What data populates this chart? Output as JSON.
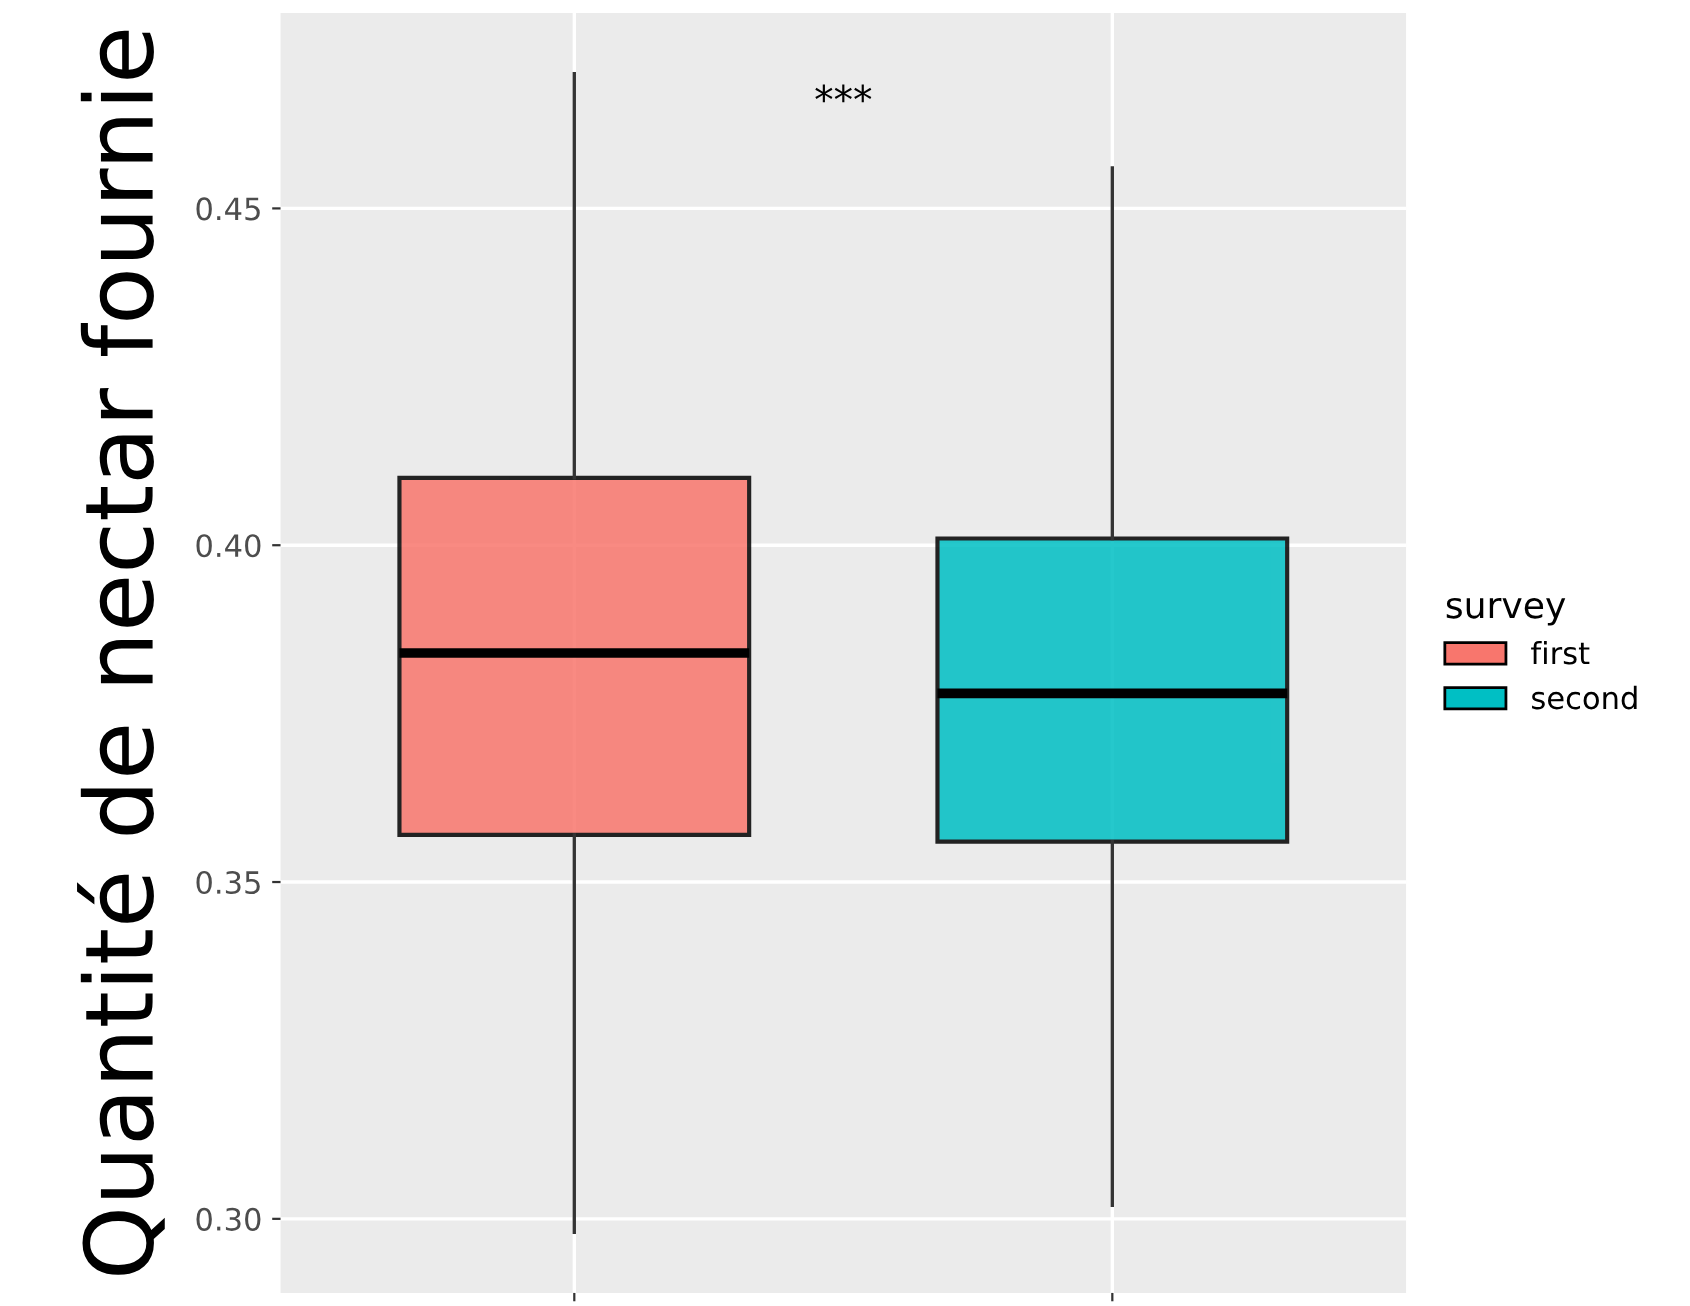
{
  "chart_data": {
    "type": "box",
    "ylabel": "Quantité de nectar fournie",
    "legend_title": "survey",
    "categories": [
      null,
      null
    ],
    "series": [
      {
        "name": "first",
        "color": "#f8766d",
        "boxes": [
          {
            "low": 0.298,
            "q1": 0.357,
            "median": 0.384,
            "q3": 0.41,
            "high": 0.47
          },
          null
        ]
      },
      {
        "name": "second",
        "color": "#00bfc4",
        "boxes": [
          null,
          {
            "low": 0.302,
            "q1": 0.356,
            "median": 0.378,
            "q3": 0.401,
            "high": 0.456
          }
        ]
      }
    ],
    "ylim": [
      0.289,
      0.479
    ],
    "yticks": [
      {
        "value": 0.3,
        "label": "0.30"
      },
      {
        "value": 0.35,
        "label": "0.35"
      },
      {
        "value": 0.4,
        "label": "0.40"
      },
      {
        "value": 0.45,
        "label": "0.45"
      }
    ],
    "grid": true,
    "legend": "right",
    "tick_labels": "y",
    "annotations": [
      "***"
    ]
  }
}
